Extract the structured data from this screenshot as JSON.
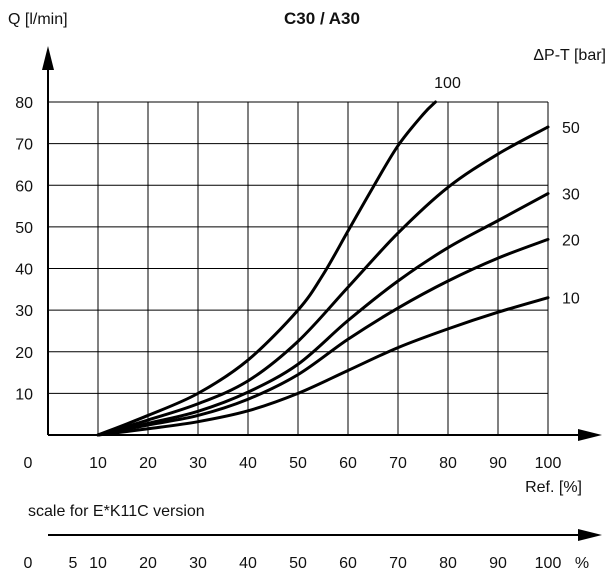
{
  "chart_data": {
    "type": "line",
    "title": "C30 / A30",
    "ylabel": "Q [l/min]",
    "xlabel": "Ref. [%]",
    "legend_title": "ΔP-T  [bar]",
    "x_origin_label": "0",
    "xlim": [
      10,
      100
    ],
    "ylim": [
      0,
      80
    ],
    "x_ticks": [
      10,
      20,
      30,
      40,
      50,
      60,
      70,
      80,
      90,
      100
    ],
    "y_ticks": [
      10,
      20,
      30,
      40,
      50,
      60,
      70,
      80
    ],
    "grid": true,
    "series": [
      {
        "name": "100",
        "x": [
          10,
          20,
          30,
          40,
          50,
          55,
          60,
          65,
          70,
          75,
          77.5
        ],
        "y": [
          0,
          4.7,
          10,
          18,
          30,
          38.5,
          49,
          59.5,
          69.5,
          77,
          80
        ]
      },
      {
        "name": "50",
        "x": [
          10,
          20,
          30,
          40,
          50,
          60,
          70,
          80,
          90,
          100
        ],
        "y": [
          0,
          3.6,
          7.5,
          13,
          22.5,
          35.5,
          48.5,
          59.5,
          67.5,
          74
        ]
      },
      {
        "name": "30",
        "x": [
          10,
          20,
          30,
          40,
          50,
          60,
          70,
          80,
          90,
          100
        ],
        "y": [
          0,
          2.8,
          5.7,
          10.3,
          17,
          27.5,
          37,
          45,
          51.5,
          58
        ]
      },
      {
        "name": "20",
        "x": [
          10,
          20,
          30,
          40,
          50,
          60,
          70,
          80,
          90,
          100
        ],
        "y": [
          0,
          2.4,
          4.7,
          8.6,
          14.5,
          23,
          30.5,
          37,
          42.5,
          47
        ]
      },
      {
        "name": "10",
        "x": [
          10,
          20,
          30,
          40,
          50,
          60,
          70,
          80,
          90,
          100
        ],
        "y": [
          0,
          1.5,
          3.2,
          5.8,
          10,
          15.5,
          21,
          25.5,
          29.5,
          33
        ]
      }
    ],
    "secondary_scale": {
      "label": "scale for E*K11C version",
      "ticks": [
        "0",
        "5",
        "10",
        "20",
        "30",
        "40",
        "50",
        "60",
        "70",
        "80",
        "90",
        "100"
      ],
      "tick_values": [
        0,
        5,
        10,
        20,
        30,
        40,
        50,
        60,
        70,
        80,
        90,
        100
      ],
      "unit": "%"
    }
  }
}
